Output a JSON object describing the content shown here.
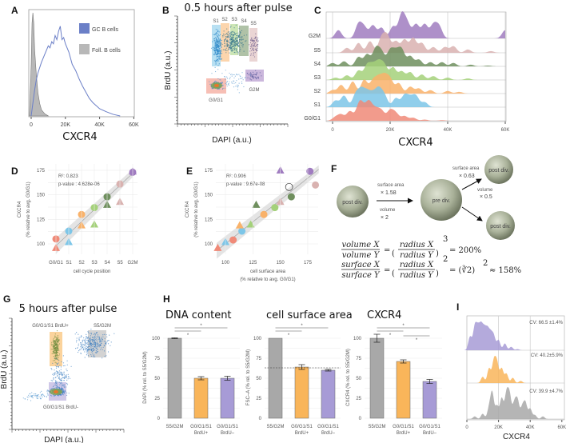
{
  "panels": {
    "A": "A",
    "B": "B",
    "C": "C",
    "D": "D",
    "E": "E",
    "F": "F",
    "G": "G",
    "H": "H",
    "I": "I"
  },
  "colors": {
    "G0/G1": "#f08a78",
    "S1": "#7dc6e8",
    "S2": "#f9b26a",
    "S3": "#a4d17a",
    "S4": "#6f8f5e",
    "S5": "#d9b2b0",
    "G2M": "#a07cc0",
    "gc": "#6b7fc7",
    "foll": "#b8b8b8",
    "orange": "#f9b55a",
    "purple": "#a79bd6",
    "gray": "#a8a8a8"
  },
  "chart_data": [
    {
      "id": "A",
      "type": "area",
      "xlabel": "CXCR4",
      "xlim": [
        0,
        60000
      ],
      "xticks": [
        "0",
        "20K",
        "40K",
        "60K"
      ],
      "legend": [
        "GC B cells",
        "Foll. B cells"
      ],
      "legend_placement": "top-right",
      "series": [
        {
          "name": "GC B cells",
          "x_k": [
            0,
            2,
            3,
            4,
            6,
            8,
            10,
            11,
            12,
            13,
            14,
            15,
            16,
            17,
            18,
            19,
            20,
            22,
            24,
            26,
            28,
            30,
            32,
            34,
            36,
            38,
            40,
            44,
            48,
            52
          ],
          "density": [
            0,
            0.25,
            0.35,
            0.42,
            0.52,
            0.6,
            0.68,
            0.66,
            0.72,
            0.7,
            0.78,
            0.74,
            0.82,
            0.87,
            0.74,
            0.76,
            0.7,
            0.62,
            0.5,
            0.44,
            0.36,
            0.29,
            0.23,
            0.17,
            0.13,
            0.1,
            0.07,
            0.04,
            0.015,
            0
          ]
        },
        {
          "name": "Foll. B cells",
          "x_k": [
            -1,
            0,
            0.5,
            1,
            1.5,
            2,
            3,
            4,
            5,
            6,
            8,
            10
          ],
          "density": [
            0,
            0.5,
            0.9,
            1.0,
            0.9,
            0.65,
            0.4,
            0.22,
            0.12,
            0.06,
            0.02,
            0
          ]
        }
      ]
    },
    {
      "id": "B",
      "type": "scatter",
      "title": "0.5 hours after pulse",
      "xlabel": "DAPI (a.u.)",
      "ylabel": "BrdU (a.u.)",
      "gates": [
        "S1",
        "S2",
        "S3",
        "S4",
        "S5",
        "G2M",
        "G0/G1"
      ]
    },
    {
      "id": "C",
      "type": "area",
      "subtype": "ridgeline",
      "xlabel": "CXCR4",
      "xlim": [
        0,
        60000
      ],
      "xticks": [
        "0",
        "20K",
        "40K",
        "60K"
      ],
      "series": [
        {
          "name": "G2M",
          "peaks_k": [
            [
              2,
              0.35
            ],
            [
              9,
              0.6
            ],
            [
              11,
              0.45
            ],
            [
              14,
              0.55
            ],
            [
              17,
              0.45
            ],
            [
              21,
              0.5
            ],
            [
              24,
              1.0
            ],
            [
              26,
              0.6
            ],
            [
              29,
              0.6
            ],
            [
              32,
              0.6
            ],
            [
              35,
              0.55
            ],
            [
              37,
              0.5
            ],
            [
              60,
              0.35
            ]
          ]
        },
        {
          "name": "S5",
          "peaks_k": [
            [
              5,
              0.3
            ],
            [
              9,
              0.6
            ],
            [
              13,
              0.7
            ],
            [
              17,
              0.9
            ],
            [
              19,
              1.0
            ],
            [
              22,
              0.7
            ],
            [
              25,
              0.8
            ],
            [
              28,
              0.9
            ],
            [
              31,
              0.6
            ],
            [
              35,
              0.35
            ],
            [
              39,
              0.35
            ],
            [
              42,
              0.4
            ],
            [
              47,
              0.2
            ],
            [
              55,
              0.1
            ]
          ]
        },
        {
          "name": "S4",
          "peaks_k": [
            [
              0,
              0.2
            ],
            [
              4,
              0.3
            ],
            [
              9,
              0.55
            ],
            [
              12,
              0.7
            ],
            [
              15,
              1.0
            ],
            [
              17,
              0.8
            ],
            [
              20,
              0.9
            ],
            [
              22,
              0.75
            ],
            [
              24,
              0.95
            ],
            [
              27,
              0.6
            ],
            [
              30,
              0.4
            ],
            [
              34,
              0.25
            ],
            [
              38,
              0.25
            ],
            [
              42,
              0.2
            ],
            [
              48,
              0.1
            ],
            [
              54,
              0.05
            ]
          ]
        },
        {
          "name": "S3",
          "peaks_k": [
            [
              1,
              0.15
            ],
            [
              5,
              0.3
            ],
            [
              9,
              0.6
            ],
            [
              12,
              0.9
            ],
            [
              14,
              0.8
            ],
            [
              16,
              1.0
            ],
            [
              18,
              0.9
            ],
            [
              21,
              0.8
            ],
            [
              24,
              0.55
            ],
            [
              27,
              0.5
            ],
            [
              31,
              0.35
            ],
            [
              35,
              0.25
            ],
            [
              40,
              0.15
            ],
            [
              47,
              0.1
            ]
          ]
        },
        {
          "name": "S2",
          "peaks_k": [
            [
              0,
              0.2
            ],
            [
              3,
              0.5
            ],
            [
              7,
              0.7
            ],
            [
              11,
              0.8
            ],
            [
              14,
              0.7
            ],
            [
              16,
              0.8
            ],
            [
              18,
              0.9
            ],
            [
              20,
              0.8
            ],
            [
              23,
              0.6
            ],
            [
              27,
              0.4
            ],
            [
              30,
              0.3
            ],
            [
              34,
              0.2
            ],
            [
              40,
              0.15
            ],
            [
              44,
              0.1
            ]
          ]
        },
        {
          "name": "S1",
          "peaks_k": [
            [
              1,
              0.4
            ],
            [
              4,
              0.7
            ],
            [
              8,
              0.75
            ],
            [
              10,
              0.95
            ],
            [
              12,
              0.8
            ],
            [
              14,
              0.7
            ],
            [
              16,
              1.0
            ],
            [
              18,
              0.7
            ],
            [
              22,
              0.55
            ],
            [
              25,
              0.7
            ],
            [
              27,
              0.5
            ],
            [
              29,
              0.65
            ],
            [
              32,
              0.3
            ]
          ]
        },
        {
          "name": "G0/G1",
          "peaks_k": [
            [
              1,
              0.3
            ],
            [
              3,
              0.5
            ],
            [
              6,
              0.8
            ],
            [
              9,
              0.85
            ],
            [
              10,
              1.0
            ],
            [
              12,
              0.8
            ],
            [
              13,
              1.0
            ],
            [
              15,
              0.85
            ],
            [
              17,
              0.8
            ],
            [
              20,
              0.85
            ],
            [
              22,
              0.6
            ],
            [
              25,
              0.4
            ],
            [
              28,
              0.25
            ],
            [
              32,
              0.1
            ],
            [
              38,
              0.05
            ]
          ]
        }
      ]
    },
    {
      "id": "D",
      "type": "scatter",
      "xlabel": "cell cycle position",
      "ylabel": "CXCR4",
      "ylabel2": "(% relative to avg. G0/G1)",
      "ylim": [
        90,
        178
      ],
      "categories": [
        "G0/G1",
        "S1",
        "S2",
        "S3",
        "S4",
        "S5",
        "G2M"
      ],
      "yticks": [
        "100",
        "125",
        "150",
        "175"
      ],
      "annotation": [
        "R²: 0.823",
        "p-value : 4.628e-06"
      ],
      "series": [
        {
          "name": "circle",
          "values": [
            105,
            113,
            130,
            137,
            148,
            161,
            173
          ]
        },
        {
          "name": "triangle",
          "values": [
            96,
            102,
            119,
            120,
            140,
            143,
            174
          ]
        }
      ],
      "fit": {
        "start": [
          0,
          98
        ],
        "end": [
          6,
          172
        ]
      }
    },
    {
      "id": "E",
      "type": "scatter",
      "xlabel": "cell surface area",
      "xlabel2": "(% relative to avg. G0/G1)",
      "ylabel": "CXCR4",
      "ylabel2": "(% relative to avg. G0/G1)",
      "xlim": [
        91,
        186
      ],
      "ylim": [
        90,
        178
      ],
      "xticks": [
        "100",
        "125",
        "150",
        "175"
      ],
      "yticks": [
        "100",
        "125",
        "150",
        "175"
      ],
      "annotation": [
        "R²: 0.906",
        "p-value : 9.67e-08"
      ],
      "points": [
        {
          "phase": "G0/G1",
          "shape": "circle",
          "x": 107,
          "y": 104
        },
        {
          "phase": "S1",
          "shape": "circle",
          "x": 115,
          "y": 113
        },
        {
          "phase": "S2",
          "shape": "circle",
          "x": 135,
          "y": 130
        },
        {
          "phase": "S3",
          "shape": "circle",
          "x": 145,
          "y": 137
        },
        {
          "phase": "S4",
          "shape": "circle",
          "x": 160,
          "y": 148
        },
        {
          "phase": "S5",
          "shape": "circle",
          "x": 182,
          "y": 160
        },
        {
          "phase": "G2M",
          "shape": "circle",
          "x": 177,
          "y": 174
        },
        {
          "phase": "open",
          "shape": "circle",
          "x": 158,
          "y": 158
        },
        {
          "phase": "G0/G1",
          "shape": "triangle",
          "x": 93,
          "y": 96
        },
        {
          "phase": "S1",
          "shape": "triangle",
          "x": 100,
          "y": 102
        },
        {
          "phase": "S2",
          "shape": "triangle",
          "x": 113,
          "y": 119
        },
        {
          "phase": "S3",
          "shape": "triangle",
          "x": 123,
          "y": 120
        },
        {
          "phase": "S4",
          "shape": "triangle",
          "x": 128,
          "y": 140
        },
        {
          "phase": "S5",
          "shape": "triangle",
          "x": 150,
          "y": 143
        },
        {
          "phase": "G2M",
          "shape": "triangle",
          "x": 150,
          "y": 175
        }
      ],
      "fit": {
        "start": [
          92,
          93
        ],
        "end": [
          185,
          176
        ]
      }
    },
    {
      "id": "G",
      "type": "scatter",
      "title": "5 hours after pulse",
      "xlabel": "DAPI (a.u.)",
      "ylabel": "BrdU (a.u.)",
      "gates": [
        "G0/G1/S1 BrdU+",
        "S5/G2M",
        "G0/G1/S1 BrdU-"
      ]
    },
    {
      "id": "H",
      "type": "bar",
      "categories": [
        "S5/G2M",
        "G0/G1/S1",
        "G0/G1/S1"
      ],
      "category_sub": [
        "",
        "BrdU+",
        "BrdU–"
      ],
      "yticks": [
        "0",
        "25",
        "50",
        "75",
        "100"
      ],
      "ylim": [
        0,
        100
      ],
      "charts": [
        {
          "title": "DNA content",
          "ylabel": "DAPI (% rel. to S5/G2M)",
          "values": [
            100,
            50,
            50
          ],
          "errors": [
            0.5,
            2,
            2.5
          ],
          "significance": [
            "*",
            "*"
          ]
        },
        {
          "title": "cell surface area",
          "ylabel": "FSC–A (% rel. to S5/G2M)",
          "values": [
            100,
            64,
            60
          ],
          "errors": [
            0,
            3,
            1
          ],
          "reference_line": 63,
          "significance": [
            "*",
            "*"
          ]
        },
        {
          "title": "CXCR4",
          "ylabel": "CXCR4 (% rel. to S5/G2M)",
          "values": [
            100,
            71,
            46
          ],
          "errors": [
            5,
            2,
            2.5
          ],
          "significance": [
            "*",
            "*",
            "*"
          ]
        }
      ]
    },
    {
      "id": "I",
      "type": "area",
      "subtype": "ridgeline",
      "xlabel": "CXCR4",
      "xlim": [
        0,
        60000
      ],
      "xticks": [
        "0",
        "20K",
        "40K",
        "60K"
      ],
      "series": [
        {
          "name": "purple",
          "label": "CV: 66.5 ±1.4%",
          "peaks_k": [
            [
              2,
              0.6
            ],
            [
              5,
              1.0
            ],
            [
              7,
              0.85
            ],
            [
              9,
              0.95
            ],
            [
              11,
              0.8
            ],
            [
              13,
              0.8
            ],
            [
              15,
              0.65
            ],
            [
              17,
              0.6
            ],
            [
              20,
              0.45
            ],
            [
              24,
              0.3
            ],
            [
              28,
              0.15
            ],
            [
              32,
              0.05
            ]
          ]
        },
        {
          "name": "orange",
          "label": "CV: 40.2±5.9%",
          "peaks_k": [
            [
              10,
              0.3
            ],
            [
              14,
              0.7
            ],
            [
              17,
              1.0
            ],
            [
              19,
              0.95
            ],
            [
              22,
              0.7
            ],
            [
              25,
              0.45
            ],
            [
              29,
              0.25
            ],
            [
              34,
              0.1
            ]
          ]
        },
        {
          "name": "gray",
          "label": "CV: 39.9 ±4.7%",
          "peaks_k": [
            [
              5,
              0.1
            ],
            [
              10,
              0.2
            ],
            [
              14,
              0.4
            ],
            [
              16,
              1.0
            ],
            [
              19,
              0.5
            ],
            [
              22,
              0.8
            ],
            [
              25,
              0.95
            ],
            [
              27,
              0.9
            ],
            [
              30,
              0.6
            ],
            [
              32,
              0.7
            ],
            [
              35,
              0.45
            ],
            [
              37,
              0.6
            ],
            [
              40,
              0.4
            ],
            [
              43,
              0.15
            ],
            [
              48,
              0.1
            ]
          ]
        }
      ]
    }
  ],
  "diagram_F": {
    "post_div": "post div.",
    "pre_div": "pre div.",
    "grow_surface": "surface area",
    "grow_surface_factor": "× 1.58",
    "grow_volume": "volume",
    "grow_volume_factor": "× 2",
    "split_surface": "surface area",
    "split_surface_factor": "× 0.63",
    "split_volume": "volume",
    "split_volume_factor": "× 0.5",
    "eq1": {
      "num": "volume X",
      "den": "volume Y",
      "rnum": "radius X",
      "rden": "radius Y",
      "exp": "3",
      "result": "= 200%"
    },
    "eq2": {
      "num": "surface X",
      "den": "surface Y",
      "rnum": "radius X",
      "rden": "radius Y",
      "exp": "2",
      "mid": "= (∛2)",
      "result": "≈ 158%"
    }
  }
}
